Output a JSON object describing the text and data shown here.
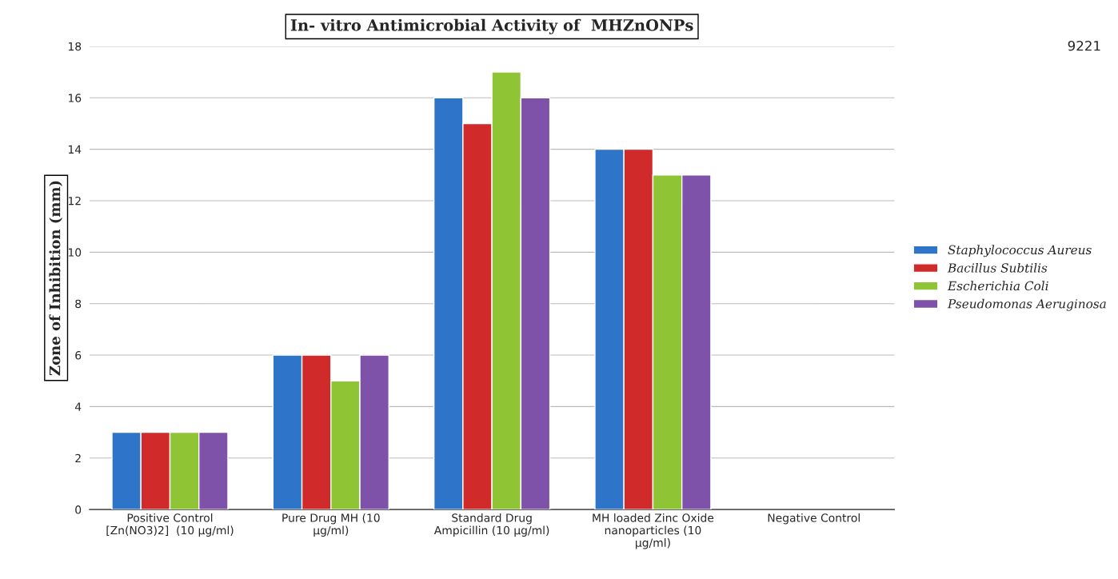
{
  "chart_data": {
    "type": "bar",
    "title": "In- vitro Antimicrobial Activity of  MHZnONPs",
    "ylabel": "Zone of Inhibition (mm)",
    "categories": [
      "Positive Control\n[Zn(NO3)2]  (10 µg/ml)",
      "Pure Drug MH (10\nµg/ml)",
      "Standard Drug\nAmpicillin (10 µg/ml)",
      "MH loaded Zinc Oxide\nnanoparticles (10\nµg/ml)",
      "Negative Control"
    ],
    "series": [
      {
        "name": "Staphylococcus Aureus",
        "color": "#2e74c9",
        "values": [
          3,
          6,
          16,
          14,
          null
        ]
      },
      {
        "name": "Bacillus Subtilis",
        "color": "#d02a2a",
        "values": [
          3,
          6,
          15,
          14,
          null
        ]
      },
      {
        "name": "Escherichia Coli",
        "color": "#8fc435",
        "values": [
          3,
          5,
          17,
          13,
          null
        ]
      },
      {
        "name": "Pseudomonas Aeruginosa",
        "color": "#7e52a8",
        "values": [
          3,
          6,
          16,
          13,
          null
        ]
      }
    ],
    "ylim": [
      0,
      18
    ],
    "yticks": [
      0,
      2,
      4,
      6,
      8,
      10,
      12,
      14,
      16,
      18
    ],
    "grid": "y",
    "legend": "right",
    "annotations": [
      "9221"
    ]
  }
}
